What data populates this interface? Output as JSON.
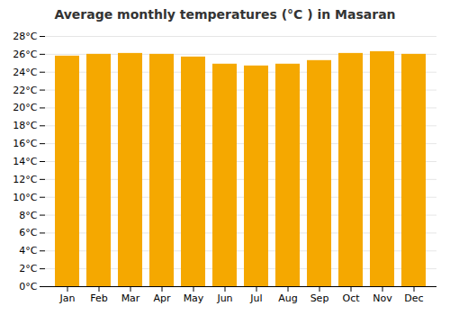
{
  "chart_data": {
    "type": "bar",
    "title": "Average monthly temperatures (°C ) in Masaran",
    "categories": [
      "Jan",
      "Feb",
      "Mar",
      "Apr",
      "May",
      "Jun",
      "Jul",
      "Aug",
      "Sep",
      "Oct",
      "Nov",
      "Dec"
    ],
    "values": [
      25.8,
      26.0,
      26.1,
      26.0,
      25.7,
      24.9,
      24.7,
      24.9,
      25.3,
      26.1,
      26.3,
      26.0
    ],
    "color": "#F5A800",
    "ylim": [
      0,
      28
    ],
    "yticks": [
      {
        "value": 0,
        "label": "0°C"
      },
      {
        "value": 2,
        "label": "2°C"
      },
      {
        "value": 4,
        "label": "4°C"
      },
      {
        "value": 6,
        "label": "6°C"
      },
      {
        "value": 8,
        "label": "8°C"
      },
      {
        "value": 10,
        "label": "10°C"
      },
      {
        "value": 12,
        "label": "12°C"
      },
      {
        "value": 14,
        "label": "14°C"
      },
      {
        "value": 16,
        "label": "16°C"
      },
      {
        "value": 18,
        "label": "18°C"
      },
      {
        "value": 20,
        "label": "20°C"
      },
      {
        "value": 22,
        "label": "22°C"
      },
      {
        "value": 24,
        "label": "24°C"
      },
      {
        "value": 26,
        "label": "26°C"
      },
      {
        "value": 28,
        "label": "28°C"
      }
    ],
    "grid": true
  }
}
